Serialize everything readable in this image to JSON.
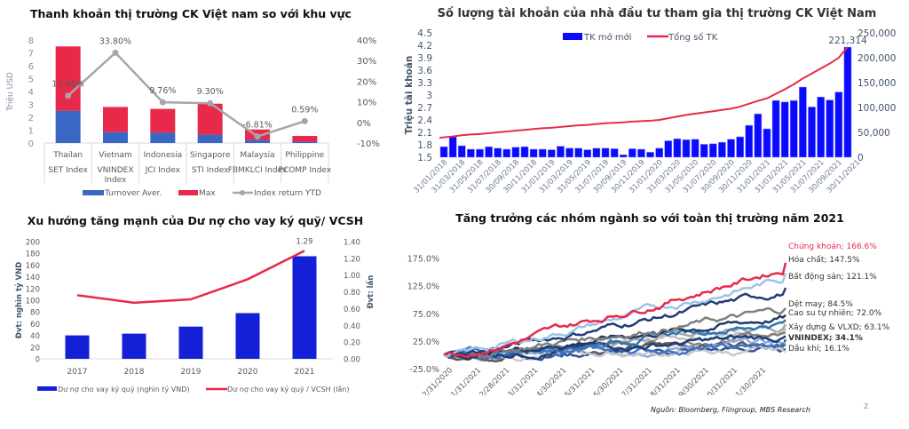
{
  "footer": {
    "source": "Nguồn: Bloomberg, Fiingroup, MBS Research",
    "page_number": "2"
  },
  "chart_data": [
    {
      "id": "liquidity",
      "type": "bar",
      "stacked": true,
      "title": "Thanh khoản thị trường CK Việt nam so với khu vực",
      "ylabel": "Triệu USD",
      "ylim": [
        0,
        8
      ],
      "yticks": [
        "0",
        "1",
        "2",
        "3",
        "4",
        "5",
        "6",
        "7",
        "8"
      ],
      "y2lim": [
        -10,
        40
      ],
      "y2ticks": [
        "-10%",
        "0%",
        "10%",
        "20%",
        "30%",
        "40%"
      ],
      "categories": [
        {
          "country": "Thailan",
          "index": "SET Index"
        },
        {
          "country": "Vietnam",
          "index": "VNINDEX Index"
        },
        {
          "country": "Indonesia",
          "index": "JCI Index"
        },
        {
          "country": "Singapore",
          "index": "STI Index"
        },
        {
          "country": "Malaysia",
          "index": "FBMKLCI Index"
        },
        {
          "country": "Philippine",
          "index": "PCOMP Index"
        }
      ],
      "series": [
        {
          "name": "Turnover Aver.",
          "color": "#3a66c4",
          "values": [
            2.5,
            0.85,
            0.8,
            0.65,
            0.25,
            0.1
          ]
        },
        {
          "name": "Max",
          "color": "#e8294a",
          "values": [
            5.0,
            1.95,
            1.85,
            2.4,
            0.8,
            0.45
          ]
        },
        {
          "name": "Index return YTD",
          "color": "#a6a6a6",
          "axis": "right",
          "values": [
            12.96,
            33.8,
            9.76,
            9.3,
            -6.81,
            0.59
          ],
          "labels": [
            "12.96%",
            "33.80%",
            "9.76%",
            "9.30%",
            "-6.81%",
            "0.59%"
          ]
        }
      ],
      "legend": "bottom"
    },
    {
      "id": "accounts",
      "type": "bar+line",
      "title": "Số lượng tài khoản của nhà đầu tư tham gia thị trường CK Việt Nam",
      "ylabel": "Triệu tài khoản",
      "ylim": [
        1.5,
        4.5
      ],
      "yticks": [
        "1.5",
        "1.8",
        "2.1",
        "2.4",
        "2.7",
        "3",
        "3.3",
        "3.6",
        "3.9",
        "4.2",
        "4.5"
      ],
      "y2lim": [
        0,
        250000
      ],
      "y2ticks": [
        "0",
        "50,000",
        "100,000",
        "150,000",
        "200,000",
        "250,000"
      ],
      "xticks": [
        "31/01/2018",
        "31/03/2018",
        "31/05/2018",
        "31/07/2018",
        "30/09/2018",
        "30/11/2018",
        "31/01/2019",
        "31/03/2019",
        "31/05/2019",
        "31/07/2019",
        "30/09/2019",
        "30/11/2019",
        "31/01/2020",
        "31/03/2020",
        "31/05/2020",
        "31/07/2020",
        "30/09/2020",
        "30/11/2020",
        "31/01/2021",
        "31/03/2021",
        "31/05/2021",
        "31/07/2021",
        "30/09/2021",
        "30/11/2021"
      ],
      "series": [
        {
          "name": "TK mở mới",
          "color": "#0a0aff",
          "axis": "right",
          "values": [
            21000,
            41000,
            23000,
            16000,
            16000,
            21000,
            18000,
            16000,
            20000,
            21000,
            16000,
            16000,
            15000,
            22000,
            18000,
            18000,
            15000,
            18000,
            18000,
            17000,
            5000,
            17000,
            16000,
            10000,
            18000,
            33000,
            37000,
            35000,
            36000,
            26000,
            27000,
            30000,
            36000,
            41000,
            64000,
            87000,
            57000,
            114000,
            111000,
            114000,
            141000,
            101000,
            121000,
            115000,
            131000,
            221314,
            0,
            0
          ],
          "annotation": "221,314"
        },
        {
          "name": "Tổng số TK",
          "color": "#e8294a",
          "axis": "left",
          "values": [
            1.97,
            2.0,
            2.03,
            2.05,
            2.06,
            2.08,
            2.1,
            2.12,
            2.14,
            2.16,
            2.18,
            2.2,
            2.21,
            2.23,
            2.25,
            2.27,
            2.28,
            2.3,
            2.32,
            2.33,
            2.34,
            2.36,
            2.37,
            2.38,
            2.4,
            2.44,
            2.48,
            2.52,
            2.55,
            2.58,
            2.61,
            2.64,
            2.67,
            2.72,
            2.79,
            2.86,
            2.92,
            3.03,
            3.14,
            3.26,
            3.4,
            3.52,
            3.64,
            3.76,
            3.9,
            4.16
          ]
        }
      ],
      "legend": "top"
    },
    {
      "id": "margin",
      "type": "bar+line",
      "title": "Xu hướng tăng mạnh của Dư nợ cho vay ký quỹ/ VCSH",
      "ylabel": "Đvt: nghìn tỷ VND",
      "y2label": "Đvt: lần",
      "ylim": [
        0,
        200
      ],
      "yticks": [
        "0",
        "20",
        "40",
        "60",
        "80",
        "100",
        "120",
        "140",
        "160",
        "180",
        "200"
      ],
      "y2lim": [
        0,
        1.4
      ],
      "y2ticks": [
        "0.00",
        "0.20",
        "0.40",
        "0.60",
        "0.80",
        "1.00",
        "1.20",
        "1.40"
      ],
      "categories": [
        "2017",
        "2018",
        "2019",
        "2020",
        "2021"
      ],
      "series": [
        {
          "name": "Dư nợ cho vay ký quỹ (nghìn tỷ VND)",
          "color": "#1420d6",
          "values": [
            40,
            43,
            55,
            78,
            175
          ]
        },
        {
          "name": "Dư nợ cho vay ký quỹ / VCSH (lần)",
          "color": "#e8294a",
          "axis": "right",
          "values": [
            0.76,
            0.67,
            0.71,
            0.95,
            1.29
          ],
          "annotation": "1.29"
        }
      ],
      "legend": "bottom"
    },
    {
      "id": "sectors",
      "type": "line",
      "title": "Tăng trưởng các nhóm ngành so với toàn thị trường năm 2021",
      "ylim": [
        -25,
        200
      ],
      "yticks": [
        "-25.0%",
        "25.0%",
        "75.0%",
        "125.0%",
        "175.0%"
      ],
      "xticks": [
        "12/31/2020",
        "1/31/2021",
        "2/28/2021",
        "3/31/2021",
        "4/30/2021",
        "5/31/2021",
        "6/30/2021",
        "7/31/2021",
        "8/31/2021",
        "9/30/2021",
        "10/31/2021",
        "11/30/2021"
      ],
      "series": [
        {
          "name": "Chứng khoán",
          "end": 166.6,
          "label": "Chứng khoán; 166.6%",
          "color": "#e8294a",
          "highlight": "red"
        },
        {
          "name": "Hóa chất",
          "end": 147.5,
          "label": "Hóa chất; 147.5%",
          "color": "#9dc3e6"
        },
        {
          "name": "Bất động sản",
          "end": 121.1,
          "label": "Bất động sản; 121.1%",
          "color": "#1f3c78"
        },
        {
          "name": "Dệt may",
          "end": 84.5,
          "label": "Dệt may; 84.5%",
          "color": "#7f7f7f"
        },
        {
          "name": "Cao su tự nhiên",
          "end": 72.0,
          "label": "Cao su tự nhiên; 72.0%",
          "color": "#203864"
        },
        {
          "name": "Xây dựng & VLXD",
          "end": 63.1,
          "label": "Xây dựng & VLXD; 63.1%",
          "color": "#2e75b6"
        },
        {
          "name": "VNINDEX",
          "end": 34.1,
          "label": "VNINDEX; 34.1%",
          "color": "#1f3c78",
          "bold": true
        },
        {
          "name": "Dầu khí",
          "end": 16.1,
          "label": "Dầu khí; 16.1%",
          "color": "#4472c4"
        }
      ],
      "unlabeled_series_ends": [
        55,
        48,
        40,
        28,
        22,
        10,
        5
      ]
    }
  ]
}
